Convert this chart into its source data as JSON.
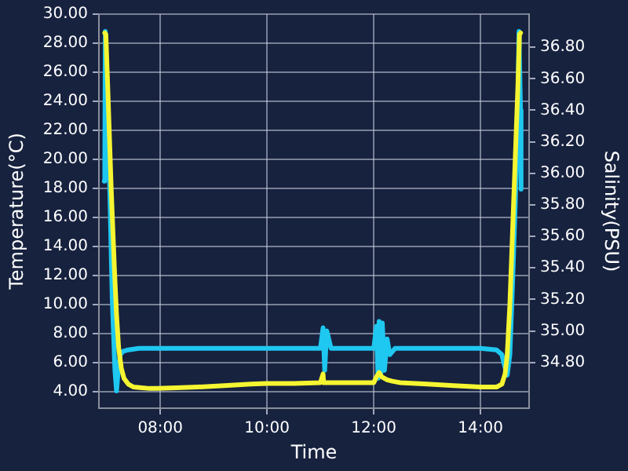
{
  "chart_data": {
    "type": "line",
    "xlabel": "Time",
    "ylabel": "Temperature(°C)",
    "y2label": "Salinity(PSU)",
    "xlim": [
      6.85,
      14.91
    ],
    "xticks": [
      {
        "value": 8,
        "label": "08:00"
      },
      {
        "value": 10,
        "label": "10:00"
      },
      {
        "value": 12,
        "label": "12:00"
      },
      {
        "value": 14,
        "label": "14:00"
      }
    ],
    "ylim": [
      2.84,
      30
    ],
    "yticks": [
      {
        "value": 4,
        "label": "4.00"
      },
      {
        "value": 6,
        "label": "6.00"
      },
      {
        "value": 8,
        "label": "8.00"
      },
      {
        "value": 10,
        "label": "10.00"
      },
      {
        "value": 12,
        "label": "12.00"
      },
      {
        "value": 14,
        "label": "14.00"
      },
      {
        "value": 16,
        "label": "16.00"
      },
      {
        "value": 18,
        "label": "18.00"
      },
      {
        "value": 20,
        "label": "20.00"
      },
      {
        "value": 22,
        "label": "22.00"
      },
      {
        "value": 24,
        "label": "24.00"
      },
      {
        "value": 26,
        "label": "26.00"
      },
      {
        "value": 28,
        "label": "28.00"
      },
      {
        "value": 30,
        "label": "30.00"
      }
    ],
    "y2lim": [
      34.51,
      37.01
    ],
    "y2ticks": [
      {
        "value": 34.8,
        "label": "34.80"
      },
      {
        "value": 35,
        "label": "35.00"
      },
      {
        "value": 35.2,
        "label": "35.20"
      },
      {
        "value": 35.4,
        "label": "35.40"
      },
      {
        "value": 35.6,
        "label": "35.60"
      },
      {
        "value": 35.8,
        "label": "35.80"
      },
      {
        "value": 36,
        "label": "36.00"
      },
      {
        "value": 36.2,
        "label": "36.20"
      },
      {
        "value": 36.4,
        "label": "36.40"
      },
      {
        "value": 36.6,
        "label": "36.60"
      },
      {
        "value": 36.8,
        "label": "36.80"
      }
    ],
    "grid": true,
    "legend": false,
    "marker": "none",
    "line_style": "solid",
    "series": [
      {
        "color": "#f5f531",
        "x": [
          6.96,
          6.98,
          7.02,
          7.08,
          7.14,
          7.18,
          7.22,
          7.27,
          7.32,
          7.4,
          7.5,
          7.65,
          7.8,
          7.95,
          8.3,
          8.7,
          9.2,
          9.7,
          10,
          10.5,
          11,
          11.05,
          11.06,
          11.1,
          11.5,
          12,
          12.05,
          12.1,
          12.15,
          12.25,
          12.35,
          12.5,
          13,
          13.5,
          14,
          14.3,
          14.4,
          14.46,
          14.5,
          14.55,
          14.6,
          14.65,
          14.7,
          14.73,
          14.75
        ],
        "values": [
          28.7,
          28.6,
          24.5,
          18,
          12.5,
          9.3,
          7,
          5.6,
          4.9,
          4.5,
          4.3,
          4.25,
          4.2,
          4.2,
          4.25,
          4.3,
          4.4,
          4.5,
          4.55,
          4.55,
          4.6,
          5.2,
          4.6,
          4.6,
          4.6,
          4.6,
          5,
          5.3,
          5,
          4.8,
          4.7,
          4.6,
          4.5,
          4.4,
          4.3,
          4.3,
          4.5,
          5.2,
          6.5,
          10,
          15,
          20,
          25,
          28.6,
          28.7
        ]
      },
      {
        "axis": "y2",
        "color": "#1ec8f0",
        "x": [
          6.95,
          6.96,
          6.97,
          6.99,
          7.02,
          7.06,
          7.1,
          7.15,
          7.18,
          7.2,
          7.22,
          7.25,
          7.3,
          7.4,
          7.6,
          8,
          9,
          10,
          11,
          11.05,
          11.08,
          11.12,
          11.2,
          11.5,
          12,
          12.05,
          12.08,
          12.1,
          12.13,
          12.16,
          12.2,
          12.25,
          12.3,
          12.4,
          12.6,
          13,
          13.5,
          14,
          14.3,
          14.4,
          14.45,
          14.5,
          14.55,
          14.6,
          14.65,
          14.7,
          14.72,
          14.75,
          14.76
        ],
        "values": [
          35.95,
          36.05,
          36.9,
          36.9,
          36.4,
          35.8,
          35.2,
          34.75,
          34.62,
          34.62,
          34.78,
          34.85,
          34.87,
          34.88,
          34.89,
          34.89,
          34.89,
          34.89,
          34.89,
          35.02,
          34.75,
          35,
          34.89,
          34.89,
          34.89,
          35.03,
          34.7,
          35.06,
          34.72,
          35.05,
          34.75,
          34.95,
          34.85,
          34.89,
          34.89,
          34.89,
          34.89,
          34.89,
          34.88,
          34.85,
          34.78,
          34.72,
          34.85,
          35.3,
          35.8,
          36.4,
          36.9,
          36.4,
          35.9
        ]
      }
    ]
  }
}
